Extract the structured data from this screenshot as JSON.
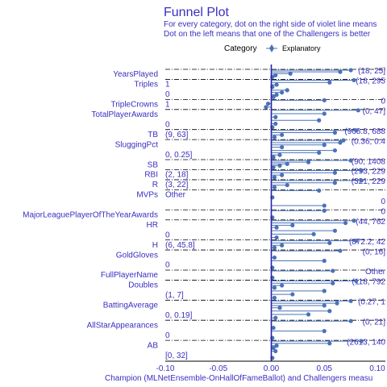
{
  "chart_data": {
    "type": "scatter",
    "title": "Funnel Plot",
    "subtitle_lines": [
      "For every category, dot on the right side of violet line means",
      "Dot on the left means that one of the Challengers is better"
    ],
    "legend": {
      "title": "Category",
      "entries": [
        "Explanatory"
      ],
      "placement": "top"
    },
    "xlabel": "Champion (MLNetEnsemble-OnHallOfFameBallot) and Challengers measu",
    "xlim": [
      -0.1,
      0.1
    ],
    "xticks": [
      -0.1,
      -0.05,
      0.0,
      0.05,
      0.1
    ],
    "xtick_labels": [
      "-0.10",
      "-0.05",
      "0.00",
      "0.05",
      "0.10"
    ],
    "categories": [
      {
        "name": "YearsPlayed",
        "left_label": "",
        "right_label": "(18, 25]",
        "points": [
          0.075,
          0.065,
          0.018,
          0.004,
          0.001
        ]
      },
      {
        "name": "Triples",
        "left_label": "1",
        "right_label": "(18, 295",
        "points": [
          0.078,
          0.055,
          0.005,
          0.001
        ]
      },
      {
        "name": "",
        "left_label": "0",
        "right_label": "",
        "points": [
          0.015,
          0.01,
          0.005,
          0.002
        ]
      },
      {
        "name": "TripleCrowns",
        "left_label": "1",
        "right_label": "0",
        "points": [
          0.05,
          -0.003,
          -0.005
        ]
      },
      {
        "name": "TotalPlayerAwards",
        "left_label": "",
        "right_label": "(0, 47]",
        "points": [
          0.082,
          0.05,
          0.004
        ]
      },
      {
        "name": "",
        "left_label": "0",
        "right_label": "",
        "points": [
          0.045,
          0.004,
          0.001
        ]
      },
      {
        "name": "TB",
        "left_label": "(9, 63]",
        "right_label": "(968.8, 688",
        "points": [
          0.08,
          0.06,
          0.01,
          0.003
        ]
      },
      {
        "name": "SluggingPct",
        "left_label": "",
        "right_label": "(0.36, 0.4",
        "points": [
          0.068,
          0.065,
          0.05,
          0.01
        ]
      },
      {
        "name": "",
        "left_label": "0, 0.25]",
        "right_label": "",
        "points": [
          0.06,
          0.045,
          0.008,
          0.002
        ]
      },
      {
        "name": "SB",
        "left_label": "",
        "right_label": "(90, 1408",
        "points": [
          0.075,
          0.035,
          0.015,
          0.008,
          0.002
        ]
      },
      {
        "name": "RBI",
        "left_label": "(2, 18]",
        "right_label": "(293, 229",
        "points": [
          0.085,
          0.06,
          0.01,
          0.003
        ]
      },
      {
        "name": "R",
        "left_label": "(3, 22]",
        "right_label": "(321, 229",
        "points": [
          0.085,
          0.06,
          0.015,
          0.003
        ]
      },
      {
        "name": "MVPs",
        "left_label": "Other",
        "right_label": "",
        "points": [
          0.045,
          0.001
        ]
      },
      {
        "name": "",
        "left_label": "",
        "right_label": "0",
        "points": [
          0.05
        ]
      },
      {
        "name": "MajorLeaguePlayerOfTheYearAwards",
        "left_label": "",
        "right_label": "0",
        "points": [
          0.05,
          0.001
        ]
      },
      {
        "name": "HR",
        "left_label": "",
        "right_label": "(44, 762",
        "points": [
          0.078,
          0.07,
          0.02,
          0.005
        ]
      },
      {
        "name": "",
        "left_label": "0",
        "right_label": "",
        "points": [
          0.06,
          0.04,
          0.005
        ]
      },
      {
        "name": "H",
        "left_label": "(6, 45.8]",
        "right_label": "(872.2, 42",
        "points": [
          0.08,
          0.055,
          0.01,
          0.003
        ]
      },
      {
        "name": "GoldGloves",
        "left_label": "",
        "right_label": "(0, 16]",
        "points": [
          0.065,
          0.003
        ]
      },
      {
        "name": "",
        "left_label": "0",
        "right_label": "",
        "points": [
          0.05,
          0.001
        ]
      },
      {
        "name": "FullPlayerName",
        "left_label": "",
        "right_label": "Other",
        "points": [
          0.058,
          0.001
        ]
      },
      {
        "name": "Doubles",
        "left_label": "",
        "right_label": "(118, 792",
        "points": [
          0.08,
          0.058,
          0.01,
          0.003
        ]
      },
      {
        "name": "",
        "left_label": "(1, 7]",
        "right_label": "",
        "points": [
          0.05,
          0.02,
          0.003
        ]
      },
      {
        "name": "BattingAverage",
        "left_label": "",
        "right_label": "(0.27, 1",
        "points": [
          0.075,
          0.062,
          0.05,
          0.008
        ]
      },
      {
        "name": "",
        "left_label": "0, 0.19]",
        "right_label": "",
        "points": [
          0.055,
          0.035,
          0.004
        ]
      },
      {
        "name": "AllStarAppearances",
        "left_label": "",
        "right_label": "(0, 21]",
        "points": [
          0.075,
          0.002
        ]
      },
      {
        "name": "",
        "left_label": "0",
        "right_label": "",
        "points": [
          0.05,
          0.001
        ]
      },
      {
        "name": "AB",
        "left_label": "",
        "right_label": "(2613, 140",
        "points": [
          0.085,
          0.055,
          0.005,
          0.002
        ]
      },
      {
        "name": "",
        "left_label": "[0, 32]",
        "right_label": "",
        "points": [
          0.004,
          0.001
        ]
      }
    ],
    "grid": false,
    "colors": {
      "title": "#3a2fc0",
      "points": "#4a72b8",
      "zero_line": "#2a1fa8",
      "separator": "#000000"
    }
  }
}
